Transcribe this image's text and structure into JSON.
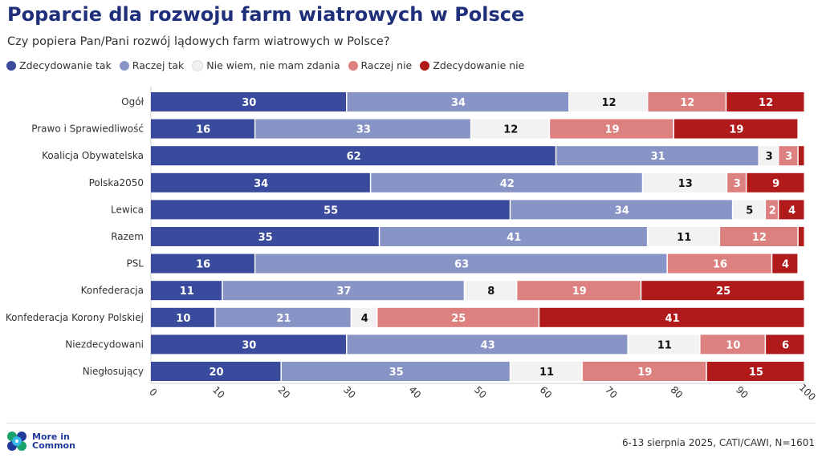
{
  "title": "Poparcie dla rozwoju farm wiatrowych w Polsce",
  "subtitle": "Czy popiera Pan/Pani rozwój lądowych farm wiatrowych w Polsce?",
  "source": "6-13 sierpnia 2025, CATI/CAWI, N=1601",
  "logo_text": [
    "More in",
    "Common"
  ],
  "chart_data": {
    "type": "bar",
    "orientation": "horizontal",
    "stacked": true,
    "xlim": [
      0,
      100
    ],
    "xticks": [
      0,
      10,
      20,
      30,
      40,
      50,
      60,
      70,
      80,
      90,
      100
    ],
    "legend_position": "top-left",
    "categories": [
      "Ogół",
      "Prawo i Sprawiedliwość",
      "Koalicja Obywatelska",
      "Polska2050",
      "Lewica",
      "Razem",
      "PSL",
      "Konfederacja",
      "Konfederacja Korony Polskiej",
      "Niezdecydowani",
      "Niegłosujący"
    ],
    "series": [
      {
        "name": "Zdecydowanie tak",
        "color": "#3a4a9c",
        "label_color": "#ffffff",
        "values": [
          30,
          16,
          62,
          34,
          55,
          35,
          16,
          11,
          10,
          30,
          20
        ]
      },
      {
        "name": "Raczej tak",
        "color": "#8893c6",
        "label_color": "#ffffff",
        "values": [
          34,
          33,
          31,
          42,
          34,
          41,
          63,
          37,
          21,
          43,
          35
        ]
      },
      {
        "name": "Nie wiem, nie mam zdania",
        "color": "#f2f2f2",
        "label_color": "#111111",
        "values": [
          12,
          12,
          3,
          13,
          5,
          11,
          0,
          8,
          4,
          11,
          11
        ]
      },
      {
        "name": "Raczej nie",
        "color": "#dc8080",
        "label_color": "#ffffff",
        "values": [
          12,
          19,
          3,
          3,
          2,
          12,
          16,
          19,
          25,
          10,
          19
        ]
      },
      {
        "name": "Zdecydowanie nie",
        "color": "#b01a1a",
        "label_color": "#ffffff",
        "values": [
          12,
          19,
          1,
          9,
          4,
          1,
          4,
          25,
          41,
          6,
          15
        ]
      }
    ],
    "label_min_value": 2
  }
}
